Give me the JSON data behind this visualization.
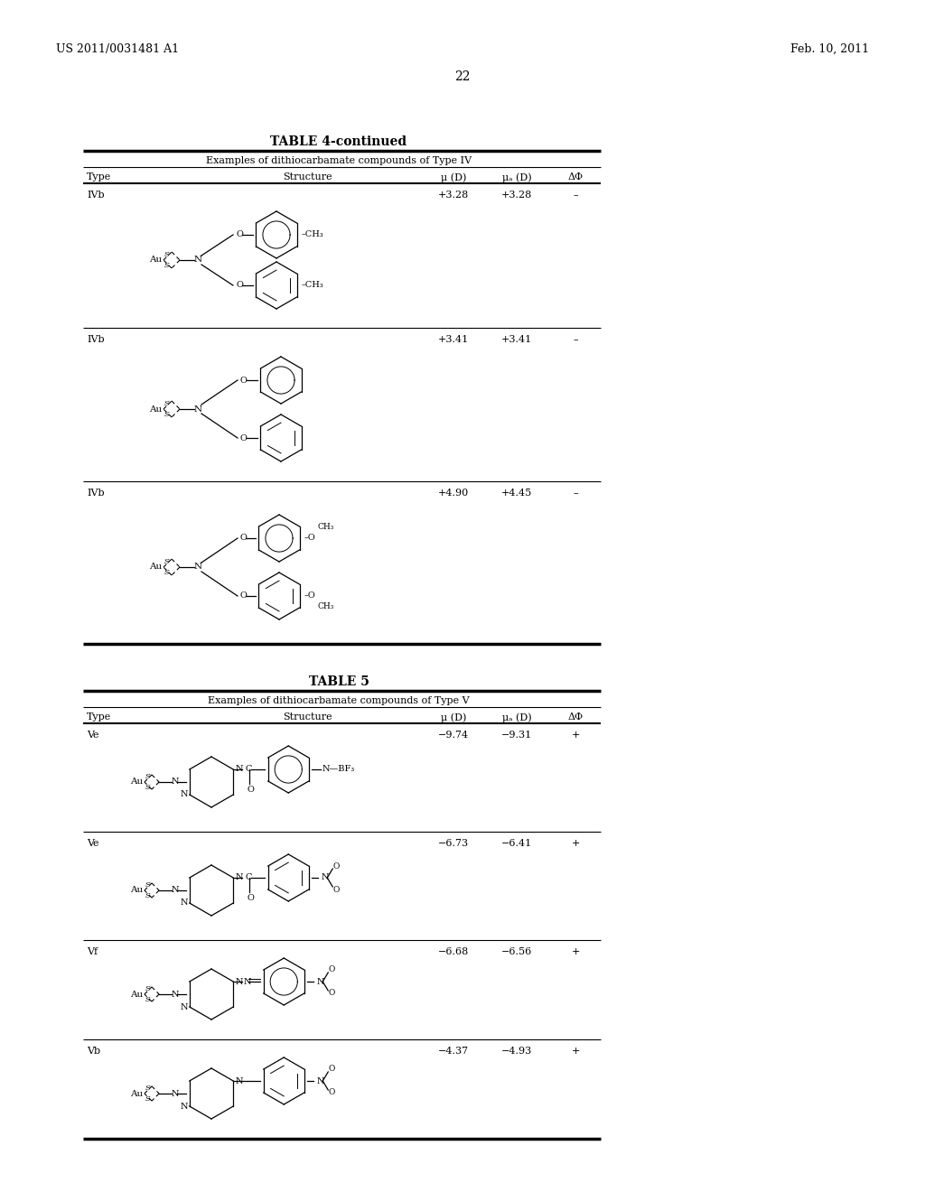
{
  "page_header_left": "US 2011/0031481 A1",
  "page_header_right": "Feb. 10, 2011",
  "page_number": "22",
  "background_color": "#ffffff",
  "table4_title": "TABLE 4-continued",
  "table4_subtitle": "Examples of dithiocarbamate compounds of Type IV",
  "table5_title": "TABLE 5",
  "table5_subtitle": "Examples of dithiocarbamate compounds of Type V",
  "t4_rows": [
    {
      "type": "IVb",
      "mu": "+3.28",
      "mu_a": "+3.28",
      "dphi": "–"
    },
    {
      "type": "IVb",
      "mu": "+3.41",
      "mu_a": "+3.41",
      "dphi": "–"
    },
    {
      "type": "IVb",
      "mu": "+4.90",
      "mu_a": "+4.45",
      "dphi": "–"
    }
  ],
  "t5_rows": [
    {
      "type": "Ve",
      "mu": "−9.74",
      "mu_a": "−9.31",
      "dphi": "+"
    },
    {
      "type": "Ve",
      "mu": "−6.73",
      "mu_a": "−6.41",
      "dphi": "+"
    },
    {
      "type": "Vf",
      "mu": "−6.68",
      "mu_a": "−6.56",
      "dphi": "+"
    },
    {
      "type": "Vb",
      "mu": "−4.37",
      "mu_a": "−4.93",
      "dphi": "+"
    }
  ]
}
